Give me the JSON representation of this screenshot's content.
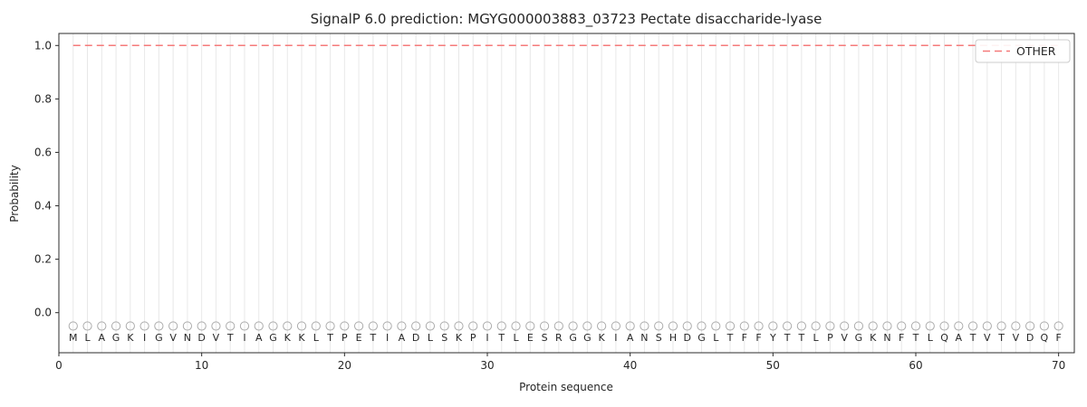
{
  "chart_data": {
    "type": "line",
    "title": "SignalP 6.0 prediction: MGYG000003883_03723 Pectate disaccharide-lyase",
    "xlabel": "Protein sequence",
    "ylabel": "Probability",
    "xlim": [
      0,
      71.1
    ],
    "ylim": [
      -0.15,
      1.045
    ],
    "xticks": [
      0,
      10,
      20,
      30,
      40,
      50,
      60,
      70
    ],
    "yticks": [
      0.0,
      0.2,
      0.4,
      0.6,
      0.8,
      1.0
    ],
    "grid": "vertical-line-at-each-residue",
    "sequence": "MLAGKIGVNDVTIAGKKLTPETIADLSKPITLESRGGKIANSHDGLTFFYTTLPVGKNFTLQATVTVDQF",
    "series": [
      {
        "name": "OTHER",
        "color": "#f57a7a",
        "linestyle": "dashed",
        "x": [
          1,
          2,
          3,
          4,
          5,
          6,
          7,
          8,
          9,
          10,
          11,
          12,
          13,
          14,
          15,
          16,
          17,
          18,
          19,
          20,
          21,
          22,
          23,
          24,
          25,
          26,
          27,
          28,
          29,
          30,
          31,
          32,
          33,
          34,
          35,
          36,
          37,
          38,
          39,
          40,
          41,
          42,
          43,
          44,
          45,
          46,
          47,
          48,
          49,
          50,
          51,
          52,
          53,
          54,
          55,
          56,
          57,
          58,
          59,
          60,
          61,
          62,
          63,
          64,
          65,
          66,
          67,
          68,
          69,
          70
        ],
        "values": [
          1.0,
          1.0,
          1.0,
          1.0,
          1.0,
          1.0,
          1.0,
          1.0,
          1.0,
          1.0,
          1.0,
          1.0,
          1.0,
          1.0,
          1.0,
          1.0,
          1.0,
          1.0,
          1.0,
          1.0,
          1.0,
          1.0,
          1.0,
          1.0,
          1.0,
          1.0,
          1.0,
          1.0,
          1.0,
          1.0,
          1.0,
          1.0,
          1.0,
          1.0,
          1.0,
          1.0,
          1.0,
          1.0,
          1.0,
          1.0,
          1.0,
          1.0,
          1.0,
          1.0,
          1.0,
          1.0,
          1.0,
          1.0,
          1.0,
          1.0,
          1.0,
          1.0,
          1.0,
          1.0,
          1.0,
          1.0,
          1.0,
          1.0,
          1.0,
          1.0,
          1.0,
          1.0,
          1.0,
          1.0,
          1.0,
          1.0,
          1.0,
          1.0,
          1.0,
          1.0
        ]
      }
    ],
    "markers": {
      "shape": "circle-outline",
      "color": "#ababab",
      "y": -0.05
    },
    "legend": {
      "position": "upper right",
      "entries": [
        {
          "label": "OTHER",
          "color": "#f57a7a",
          "linestyle": "dashed"
        }
      ]
    },
    "colors": {
      "grid": "#e8e8e8",
      "spine": "#2b2b2b",
      "letters": "#1a1a1a",
      "tick_labels": "#262626"
    }
  }
}
